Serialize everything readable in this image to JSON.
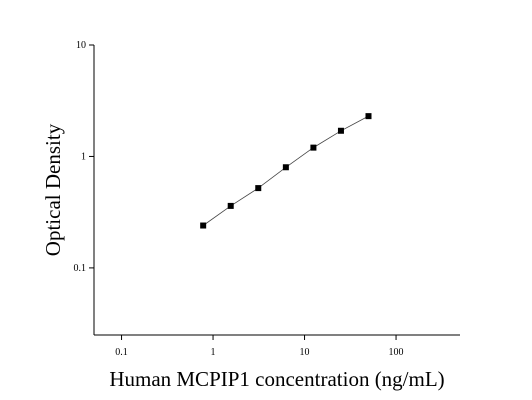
{
  "chart_data": {
    "type": "line",
    "marker": "square",
    "color": "#000000",
    "xlabel": "Human MCPIP1 concentration (ng/mL)",
    "ylabel": "Optical Density",
    "x": [
      0.78,
      1.56,
      3.12,
      6.25,
      12.5,
      25,
      50
    ],
    "values": [
      0.24,
      0.36,
      0.52,
      0.8,
      1.2,
      1.7,
      2.3
    ],
    "xscale": "log",
    "yscale": "log",
    "xlim": [
      0.05,
      500
    ],
    "ylim": [
      0.025,
      10
    ],
    "xticks": [
      0.1,
      1,
      10,
      100
    ],
    "yticks": [
      0.1,
      1,
      10
    ],
    "grid": false
  }
}
